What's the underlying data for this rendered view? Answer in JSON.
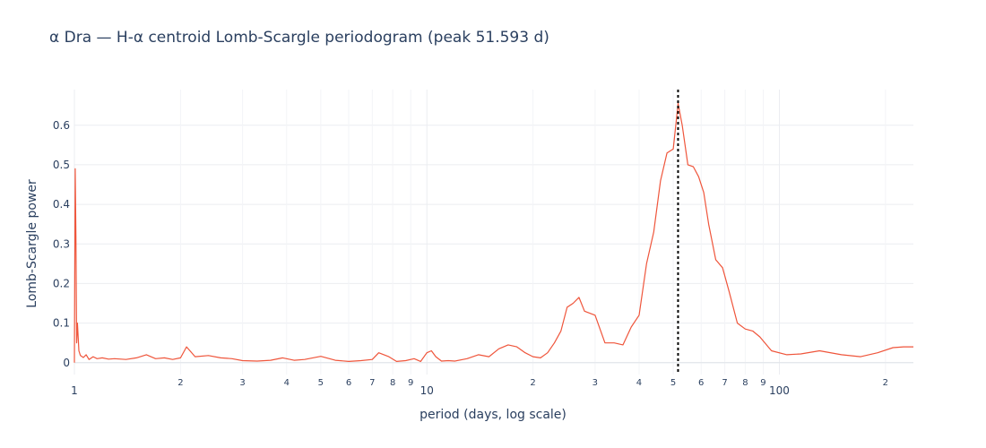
{
  "chart_data": {
    "type": "line",
    "title": "α Dra — H-α centroid Lomb-Scargle periodogram (peak 51.593 d)",
    "xlabel": "period (days, log scale)",
    "ylabel": "Lomb-Scargle power",
    "x_scale": "log",
    "xlim": [
      1,
      240
    ],
    "ylim": [
      -0.03,
      0.69
    ],
    "grid": true,
    "line_color": "#ef553b",
    "marker_color": "#000000",
    "peak_period": 51.593,
    "y_ticks": [
      "0",
      "0.1",
      "0.2",
      "0.3",
      "0.4",
      "0.5",
      "0.6"
    ],
    "y_tick_values": [
      0,
      0.1,
      0.2,
      0.3,
      0.4,
      0.5,
      0.6
    ],
    "x_ticks_major": [
      {
        "value": 1,
        "label": "1"
      },
      {
        "value": 10,
        "label": "10"
      },
      {
        "value": 100,
        "label": "100"
      }
    ],
    "x_ticks_minor": [
      {
        "value": 2,
        "label": "2"
      },
      {
        "value": 3,
        "label": "3"
      },
      {
        "value": 4,
        "label": "4"
      },
      {
        "value": 5,
        "label": "5"
      },
      {
        "value": 6,
        "label": "6"
      },
      {
        "value": 7,
        "label": "7"
      },
      {
        "value": 8,
        "label": "8"
      },
      {
        "value": 9,
        "label": "9"
      },
      {
        "value": 20,
        "label": "2"
      },
      {
        "value": 30,
        "label": "3"
      },
      {
        "value": 40,
        "label": "4"
      },
      {
        "value": 50,
        "label": "5"
      },
      {
        "value": 60,
        "label": "6"
      },
      {
        "value": 70,
        "label": "7"
      },
      {
        "value": 80,
        "label": "8"
      },
      {
        "value": 90,
        "label": "9"
      },
      {
        "value": 200,
        "label": "2"
      }
    ],
    "series": [
      {
        "x": [
          1.0,
          1.005,
          1.01,
          1.015,
          1.02,
          1.03,
          1.04,
          1.06,
          1.08,
          1.1,
          1.13,
          1.16,
          1.2,
          1.25,
          1.3,
          1.4,
          1.5,
          1.6,
          1.7,
          1.8,
          1.9,
          2.0,
          2.08,
          2.2,
          2.4,
          2.6,
          2.8,
          3.0,
          3.3,
          3.6,
          3.9,
          4.2,
          4.5,
          5.0,
          5.5,
          6.0,
          6.5,
          7.0,
          7.3,
          7.8,
          8.2,
          8.7,
          9.2,
          9.6,
          10.0,
          10.3,
          10.6,
          11.0,
          11.5,
          12.0,
          13.0,
          14.0,
          15.0,
          16.0,
          17.0,
          18.0,
          19.0,
          20.0,
          21.0,
          22.0,
          23.0,
          24.0,
          25.0,
          26.0,
          27.0,
          28.0,
          30.0,
          32.0,
          34.0,
          36.0,
          38.0,
          40.0,
          42.0,
          44.0,
          46.0,
          48.0,
          50.0,
          51.593,
          53.0,
          55.0,
          57.0,
          59.0,
          61.0,
          63.0,
          66.0,
          69.0,
          72.0,
          76.0,
          80.0,
          84.0,
          88.0,
          95.0,
          105.0,
          115.0,
          130.0,
          150.0,
          170.0,
          190.0,
          210.0,
          225.0,
          240.0
        ],
        "y": [
          0.0,
          0.49,
          0.32,
          0.05,
          0.1,
          0.03,
          0.018,
          0.013,
          0.02,
          0.008,
          0.015,
          0.01,
          0.012,
          0.009,
          0.01,
          0.008,
          0.012,
          0.02,
          0.01,
          0.012,
          0.008,
          0.012,
          0.04,
          0.015,
          0.018,
          0.012,
          0.01,
          0.005,
          0.004,
          0.006,
          0.012,
          0.006,
          0.008,
          0.016,
          0.006,
          0.003,
          0.005,
          0.008,
          0.025,
          0.015,
          0.003,
          0.005,
          0.01,
          0.003,
          0.025,
          0.03,
          0.015,
          0.004,
          0.005,
          0.004,
          0.01,
          0.02,
          0.015,
          0.035,
          0.045,
          0.04,
          0.025,
          0.015,
          0.012,
          0.025,
          0.05,
          0.08,
          0.14,
          0.15,
          0.165,
          0.13,
          0.12,
          0.05,
          0.05,
          0.045,
          0.09,
          0.12,
          0.25,
          0.33,
          0.46,
          0.53,
          0.54,
          0.655,
          0.6,
          0.5,
          0.495,
          0.47,
          0.43,
          0.35,
          0.26,
          0.24,
          0.18,
          0.1,
          0.085,
          0.08,
          0.065,
          0.03,
          0.02,
          0.022,
          0.03,
          0.02,
          0.015,
          0.025,
          0.038,
          0.04,
          0.04
        ]
      }
    ]
  }
}
